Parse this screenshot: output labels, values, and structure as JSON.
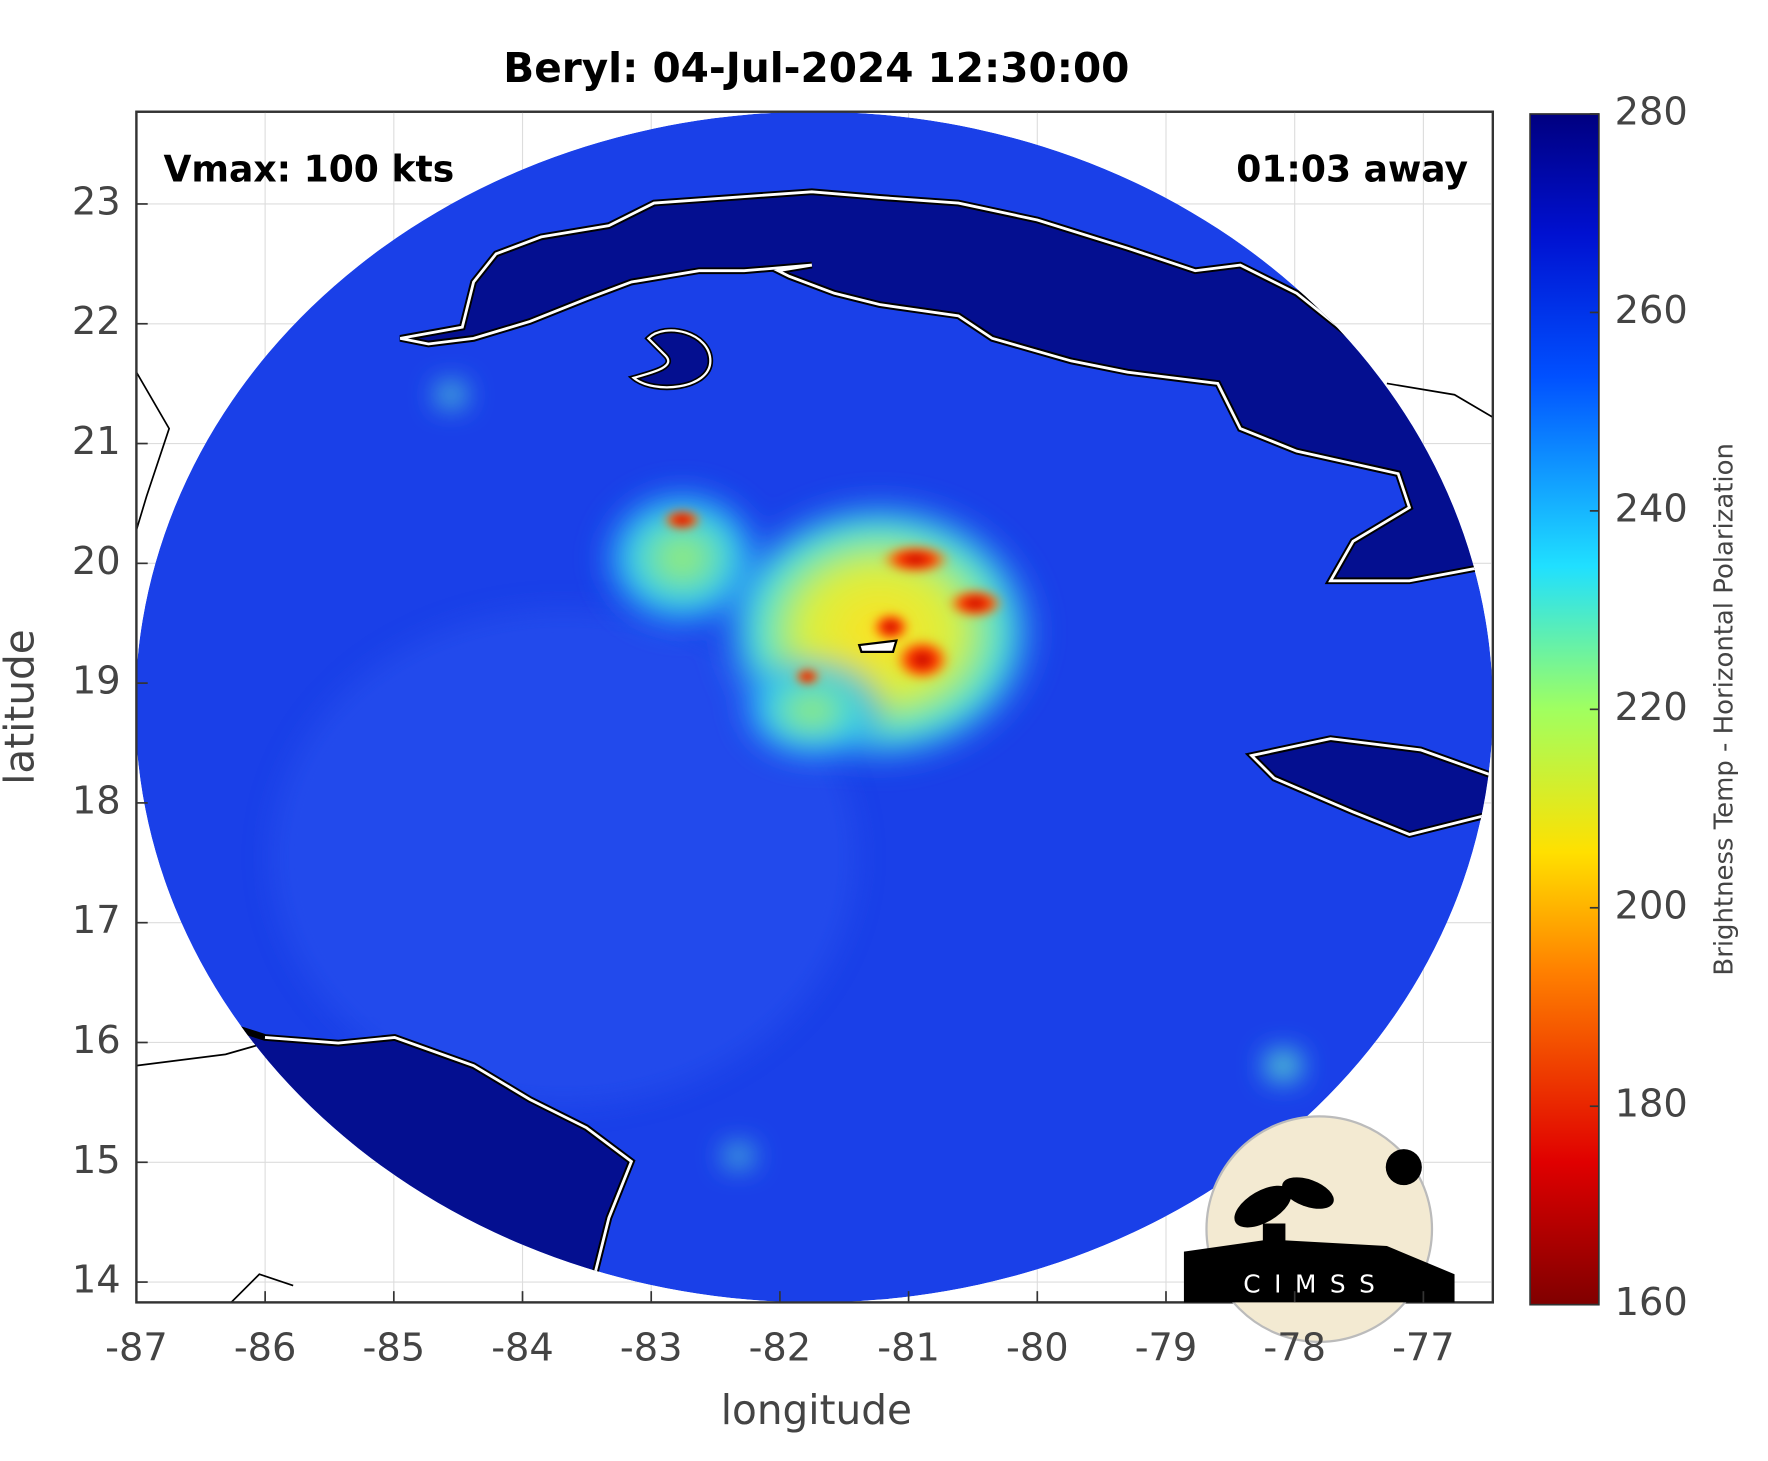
{
  "chart_data": {
    "type": "map",
    "title": "Beryl: 04-Jul-2024 12:30:00",
    "xlabel": "longitude",
    "ylabel": "latitude",
    "annotations": [
      "Vmax: 100 kts",
      "01:03 away"
    ],
    "xlim": [
      -87,
      -76.46
    ],
    "ylim": [
      13.83,
      23.77
    ],
    "xticks": [
      -87,
      -86,
      -85,
      -84,
      -83,
      -82,
      -81,
      -80,
      -79,
      -78,
      -77
    ],
    "yticks": [
      14,
      15,
      16,
      17,
      18,
      19,
      20,
      21,
      22,
      23
    ],
    "grid": true,
    "colorbar": {
      "label": "Brightness Temp - Horizontal Polarization",
      "lim": [
        160,
        280
      ],
      "ticks": [
        160,
        180,
        200,
        220,
        240,
        260,
        280
      ]
    },
    "logo": "CIMSS"
  }
}
